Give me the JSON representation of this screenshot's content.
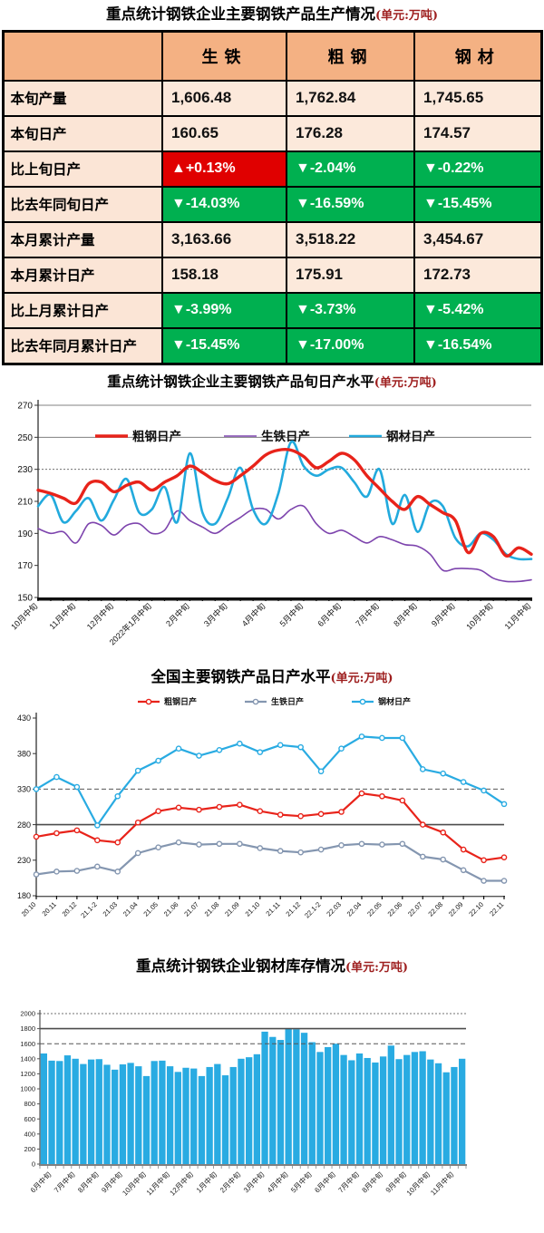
{
  "titles": {
    "t1": {
      "main": "重点统计钢铁企业主要钢铁产品生产情况",
      "unit": "(单元:万吨)"
    },
    "t2": {
      "main": "重点统计钢铁企业主要钢铁产品旬日产水平",
      "unit": "(单元:万吨)"
    },
    "t3": {
      "main": "全国主要钢铁产品日产水平",
      "unit": "(单元:万吨)"
    },
    "t4": {
      "main": "重点统计钢铁企业钢材库存情况",
      "unit": "(单元:万吨)"
    }
  },
  "table": {
    "columns": [
      "",
      "生铁",
      "粗钢",
      "钢材"
    ],
    "status_colors": {
      "up": "#E00000",
      "down": "#00B050"
    },
    "rows": [
      {
        "label": "本旬产量",
        "cells": [
          {
            "t": "1,606.48",
            "s": "plain"
          },
          {
            "t": "1,762.84",
            "s": "plain"
          },
          {
            "t": "1,745.65",
            "s": "plain"
          }
        ]
      },
      {
        "label": "本旬日产",
        "cells": [
          {
            "t": "160.65",
            "s": "plain"
          },
          {
            "t": "176.28",
            "s": "plain"
          },
          {
            "t": "174.57",
            "s": "plain"
          }
        ]
      },
      {
        "label": "比上旬日产",
        "cells": [
          {
            "t": "▲+0.13%",
            "s": "red"
          },
          {
            "t": "▼-2.04%",
            "s": "green"
          },
          {
            "t": "▼-0.22%",
            "s": "green"
          }
        ]
      },
      {
        "label": "比去年同旬日产",
        "cells": [
          {
            "t": "▼-14.03%",
            "s": "green"
          },
          {
            "t": "▼-16.59%",
            "s": "green"
          },
          {
            "t": "▼-15.45%",
            "s": "green"
          }
        ]
      },
      {
        "label": "本月累计产量",
        "cells": [
          {
            "t": "3,163.66",
            "s": "plain"
          },
          {
            "t": "3,518.22",
            "s": "plain"
          },
          {
            "t": "3,454.67",
            "s": "plain"
          }
        ]
      },
      {
        "label": "本月累计日产",
        "cells": [
          {
            "t": "158.18",
            "s": "plain"
          },
          {
            "t": "175.91",
            "s": "plain"
          },
          {
            "t": "172.73",
            "s": "plain"
          }
        ]
      },
      {
        "label": "比上月累计日产",
        "cells": [
          {
            "t": "▼-3.99%",
            "s": "green"
          },
          {
            "t": "▼-3.73%",
            "s": "green"
          },
          {
            "t": "▼-5.42%",
            "s": "green"
          }
        ]
      },
      {
        "label": "比去年同月累计日产",
        "cells": [
          {
            "t": "▼-15.45%",
            "s": "green"
          },
          {
            "t": "▼-17.00%",
            "s": "green"
          },
          {
            "t": "▼-16.54%",
            "s": "green"
          }
        ]
      }
    ]
  },
  "chart_data": [
    {
      "type": "line",
      "title": "重点统计钢铁企业主要钢铁产品旬日产水平",
      "title_unit": "(单元:万吨)",
      "ylim": [
        150,
        270
      ],
      "ytick_step": 20,
      "grid": [
        {
          "y": 270,
          "style": "solid"
        },
        {
          "y": 250,
          "style": "solid"
        },
        {
          "y": 230,
          "style": "dotted"
        }
      ],
      "legend_position": "top-inside",
      "markers": false,
      "smooth": true,
      "x_tick_labels": [
        "10月中旬",
        "11月中旬",
        "12月中旬",
        "2022年1月中旬",
        "2月中旬",
        "3月中旬",
        "4月中旬",
        "5月中旬",
        "6月中旬",
        "7月中旬",
        "8月中旬",
        "9月中旬",
        "10月中旬",
        "11月中旬"
      ],
      "label_every": 3,
      "series": [
        {
          "name": "粗钢日产",
          "color": "#E8231A",
          "width": 3.4,
          "values": [
            217,
            215,
            212,
            209,
            221,
            222,
            216,
            220,
            222,
            217,
            222,
            226,
            232,
            228,
            223,
            221,
            226,
            232,
            239,
            242,
            242,
            238,
            231,
            235,
            240,
            236,
            226,
            218,
            210,
            205,
            213,
            208,
            203,
            198,
            178,
            190,
            188,
            176,
            181,
            177
          ]
        },
        {
          "name": "生铁日产",
          "color": "#7D44AD",
          "width": 1.6,
          "values": [
            193,
            190,
            191,
            184,
            196,
            195,
            189,
            195,
            196,
            190,
            192,
            204,
            198,
            194,
            190,
            195,
            200,
            205,
            205,
            199,
            205,
            207,
            196,
            190,
            192,
            188,
            184,
            188,
            186,
            183,
            182,
            177,
            167,
            168,
            168,
            167,
            162,
            160,
            160,
            161
          ]
        },
        {
          "name": "钢材日产",
          "color": "#22AADD",
          "width": 2.6,
          "values": [
            207,
            214,
            197,
            204,
            212,
            198,
            211,
            224,
            203,
            205,
            219,
            197,
            240,
            203,
            196,
            212,
            231,
            205,
            196,
            215,
            247,
            232,
            226,
            230,
            231,
            222,
            213,
            230,
            196,
            214,
            191,
            209,
            207,
            187,
            182,
            190,
            186,
            177,
            174,
            174
          ]
        }
      ]
    },
    {
      "type": "line",
      "title": "全国主要钢铁产品日产水平",
      "title_unit": "(单元:万吨)",
      "ylim": [
        180,
        430
      ],
      "ytick_step": 50,
      "grid": [
        {
          "y": 330,
          "style": "dashed"
        },
        {
          "y": 280,
          "style": "strong"
        }
      ],
      "legend_position": "top-inside",
      "markers": true,
      "smooth": false,
      "x_tick_labels": [
        "20.10",
        "20.11",
        "20.12",
        "21.1-2",
        "21.03",
        "21.04",
        "21.05",
        "21.06",
        "21.07",
        "21.08",
        "21.09",
        "21.10",
        "21.11",
        "21.12",
        "22.1-2",
        "22.03",
        "22.04",
        "22.05",
        "22.06",
        "22.07",
        "22.08",
        "22.09",
        "22.10",
        "22.11"
      ],
      "label_every": 1,
      "series": [
        {
          "name": "粗钢日产",
          "color": "#E8231A",
          "width": 2.2,
          "values": [
            263,
            268,
            272,
            258,
            255,
            283,
            299,
            304,
            301,
            305,
            308,
            299,
            294,
            292,
            295,
            298,
            324,
            320,
            314,
            280,
            269,
            245,
            230,
            234
          ]
        },
        {
          "name": "生铁日产",
          "color": "#8496B0",
          "width": 2.2,
          "values": [
            210,
            214,
            215,
            221,
            214,
            240,
            248,
            255,
            252,
            253,
            253,
            247,
            243,
            241,
            245,
            251,
            253,
            252,
            253,
            235,
            231,
            216,
            201,
            201
          ]
        },
        {
          "name": "钢材日产",
          "color": "#29ABE2",
          "width": 2.2,
          "values": [
            330,
            347,
            333,
            279,
            320,
            356,
            370,
            387,
            377,
            385,
            394,
            382,
            392,
            389,
            355,
            387,
            404,
            402,
            402,
            358,
            352,
            340,
            328,
            309
          ]
        }
      ]
    },
    {
      "type": "bar",
      "title": "重点统计钢铁企业钢材库存情况",
      "title_unit": "(单元:万吨)",
      "bar_color": "#29ABE2",
      "ylim": [
        0,
        2000
      ],
      "ytick_step": 200,
      "grid": [
        {
          "y": 2000,
          "style": "dotted"
        },
        {
          "y": 1800,
          "style": "strong"
        },
        {
          "y": 1600,
          "style": "dashed"
        }
      ],
      "x_tick_labels": [
        "6月中旬",
        "7月中旬",
        "8月中旬",
        "9月中旬",
        "10月中旬",
        "11月中旬",
        "12月中旬",
        "1月中旬",
        "2月中旬",
        "3月中旬",
        "4月中旬",
        "5月中旬",
        "6月中旬",
        "7月中旬",
        "8月中旬",
        "9月中旬",
        "10月中旬",
        "11月中旬"
      ],
      "label_every": 3,
      "label_offset": 1,
      "values": [
        1470,
        1375,
        1370,
        1445,
        1400,
        1330,
        1390,
        1395,
        1320,
        1255,
        1325,
        1345,
        1300,
        1170,
        1370,
        1375,
        1300,
        1225,
        1280,
        1270,
        1170,
        1290,
        1330,
        1180,
        1290,
        1400,
        1420,
        1460,
        1760,
        1690,
        1650,
        1805,
        1790,
        1745,
        1620,
        1490,
        1555,
        1600,
        1450,
        1380,
        1470,
        1410,
        1350,
        1430,
        1575,
        1395,
        1450,
        1490,
        1500,
        1390,
        1340,
        1220,
        1290,
        1400
      ]
    }
  ]
}
